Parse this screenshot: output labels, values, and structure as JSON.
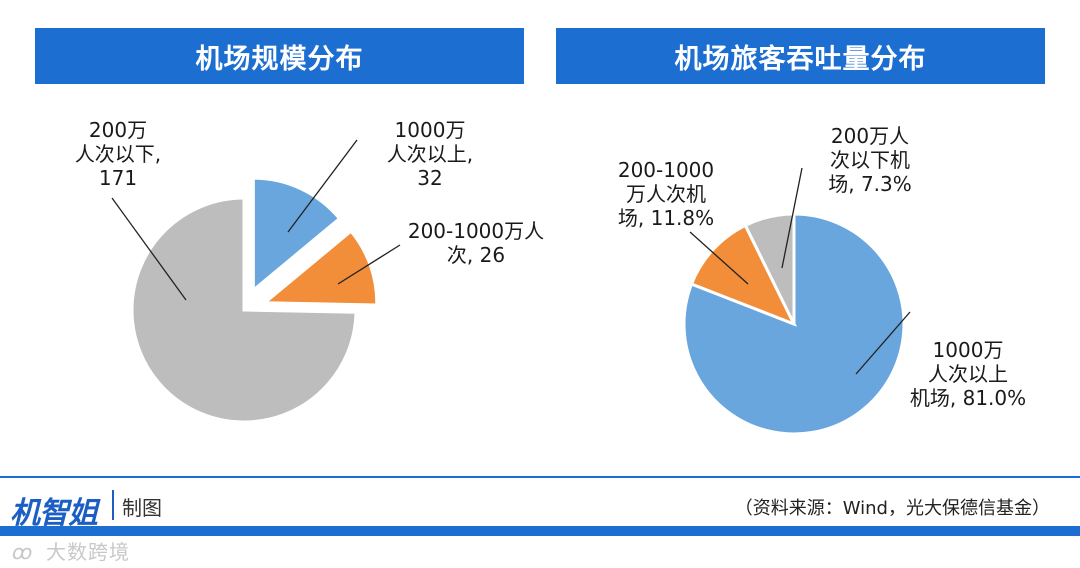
{
  "chart_data": [
    {
      "type": "pie",
      "title": "机场规模分布",
      "slices": [
        {
          "label": "1000万人次以上",
          "value": 32,
          "color": "#6aa6de",
          "exploded": true,
          "label_lines": [
            "1000万",
            "人次以上,",
            "32"
          ]
        },
        {
          "label": "200-1000万人次",
          "value": 26,
          "color": "#f28e3a",
          "exploded": true,
          "label_lines": [
            "200-1000万人",
            "次, 26"
          ]
        },
        {
          "label": "200万人次以下",
          "value": 171,
          "color": "#bdbdbd",
          "exploded": false,
          "label_lines": [
            "200万",
            "人次以下,",
            "171"
          ]
        }
      ]
    },
    {
      "type": "pie",
      "title": "机场旅客吞吐量分布",
      "slices": [
        {
          "label": "1000万人次以上机场",
          "value": 81.0,
          "color": "#6aa6de",
          "label_lines": [
            "1000万",
            "人次以上",
            "机场, 81.0%"
          ]
        },
        {
          "label": "200-1000万人次机场",
          "value": 11.8,
          "color": "#f28e3a",
          "label_lines": [
            "200-1000",
            "万人次机",
            "场, 11.8%"
          ]
        },
        {
          "label": "200万人以下机场",
          "value": 7.3,
          "color": "#bdbdbd",
          "label_lines": [
            "200万人",
            "次以下机",
            "场, 7.3%"
          ]
        }
      ]
    }
  ],
  "footer": {
    "brand": "机智姐",
    "brand_sub": "制图",
    "source": "（资料来源：Wind，光大保德信基金）",
    "watermark": "大数跨境",
    "accent_color": "#1c6fd1"
  }
}
